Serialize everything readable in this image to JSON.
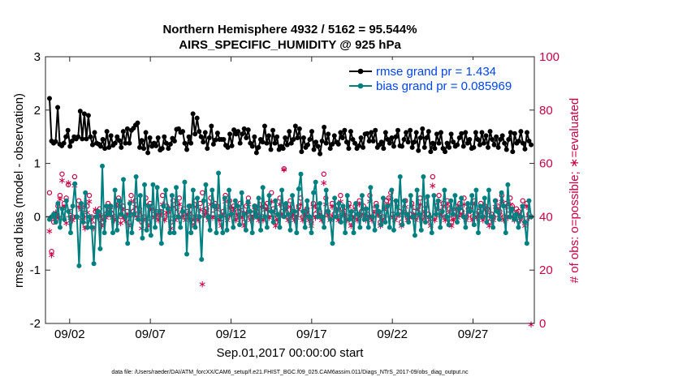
{
  "chart_data": {
    "type": "line",
    "title_line1": "Northern Hemisphere 4932 / 5162 = 95.544%",
    "title_line2": "AIRS_SPECIFIC_HUMIDITY @ 925 hPa",
    "ylabel_left": "rmse and bias (model - observation)",
    "ylabel_right": "# of obs: o=possible; ∗=evaluated",
    "xlabel": "Sep.01,2017 00:00:00 start",
    "footer": "data file: /Users/raeder/DAI/ATM_forcXX/CAM6_setup/f.e21.FHIST_BGC.f09_025.CAM6assim.011/Diags_NTrS_2017-09/obs_diag_output.nc",
    "x_range": [
      0.5,
      30.8
    ],
    "ylim_left": [
      -2,
      3
    ],
    "ylim_right": [
      0,
      100
    ],
    "left_ticks": [
      "-2",
      "-1",
      "0",
      "1",
      "2",
      "3"
    ],
    "right_ticks": [
      "0",
      "20",
      "40",
      "60",
      "80",
      "100"
    ],
    "x_ticks": [
      {
        "day": 2,
        "label": "09/02"
      },
      {
        "day": 7,
        "label": "09/07"
      },
      {
        "day": 12,
        "label": "09/12"
      },
      {
        "day": 17,
        "label": "09/17"
      },
      {
        "day": 22,
        "label": "09/22"
      },
      {
        "day": 27,
        "label": "09/27"
      }
    ],
    "legend": [
      {
        "name": "rmse grand pr = 1.434",
        "color": "#000000"
      },
      {
        "name": "bias grand pr = 0.085969",
        "color": "#008080"
      }
    ],
    "colors": {
      "rmse": "#000000",
      "bias": "#008080",
      "obs": "#cc0044",
      "zero_line": "#999999"
    },
    "series": [
      {
        "name": "rmse",
        "axis": "left",
        "values": [
          2.22,
          1.42,
          1.38,
          1.41,
          2.05,
          1.36,
          1.33,
          1.38,
          1.5,
          1.62,
          1.32,
          1.42,
          1.5,
          1.46,
          1.5,
          1.98,
          1.46,
          1.93,
          1.46,
          1.9,
          1.5,
          1.35,
          1.58,
          1.38,
          1.36,
          1.32,
          1.45,
          1.28,
          1.6,
          1.3,
          1.52,
          1.34,
          1.38,
          1.5,
          1.43,
          1.3,
          1.6,
          1.38,
          1.65,
          1.38,
          1.62,
          1.66,
          1.72,
          1.76,
          1.3,
          1.43,
          1.28,
          1.58,
          1.2,
          1.48,
          1.32,
          1.38,
          1.33,
          1.48,
          1.25,
          1.28,
          1.5,
          1.38,
          1.28,
          1.36,
          1.47,
          1.42,
          1.64,
          1.65,
          1.58,
          1.6,
          1.38,
          1.26,
          1.5,
          1.38,
          1.93,
          1.55,
          1.85,
          1.6,
          1.5,
          1.4,
          1.58,
          1.28,
          1.48,
          1.7,
          1.36,
          1.44,
          1.57,
          1.45,
          1.45,
          1.45,
          1.34,
          1.3,
          1.55,
          1.33,
          1.63,
          1.55,
          1.6,
          1.38,
          1.55,
          1.65,
          1.48,
          1.63,
          1.38,
          1.32,
          1.5,
          1.2,
          1.3,
          1.45,
          1.4,
          1.7,
          1.38,
          1.52,
          1.26,
          1.62,
          1.38,
          1.5,
          1.26,
          1.32,
          1.28,
          1.48,
          1.35,
          1.6,
          1.38,
          1.45,
          1.7,
          1.48,
          1.65,
          1.22,
          1.48,
          1.3,
          1.35,
          1.45,
          1.6,
          1.26,
          1.4,
          1.32,
          1.18,
          1.42,
          1.68,
          1.38,
          1.55,
          1.28,
          1.36,
          1.52,
          1.4,
          1.36,
          1.58,
          1.48,
          1.62,
          1.4,
          1.28,
          1.6,
          1.45,
          1.38,
          1.28,
          1.33,
          1.48,
          1.3,
          1.55,
          1.56,
          1.42,
          1.58,
          1.42,
          1.62,
          1.3,
          1.35,
          1.4,
          1.28,
          1.58,
          1.45,
          1.38,
          1.48,
          1.32,
          1.5,
          1.62,
          1.33,
          1.32,
          1.45,
          1.58,
          1.4,
          1.62,
          1.3,
          1.4,
          1.58,
          1.24,
          1.48,
          1.65,
          1.3,
          1.48,
          1.6,
          1.22,
          1.38,
          1.28,
          1.55,
          1.38,
          1.58,
          1.28,
          1.22,
          1.38,
          1.3,
          1.55,
          1.4,
          1.32,
          1.35,
          1.48,
          1.56,
          1.32,
          1.58,
          1.38,
          1.45,
          1.28,
          1.3,
          1.58,
          1.45,
          1.35,
          1.58,
          1.38,
          1.52,
          1.3,
          1.6,
          1.45,
          1.35,
          1.5,
          1.3,
          1.45,
          1.52,
          1.38,
          1.26,
          1.45,
          1.58,
          1.22,
          1.56,
          1.38,
          1.42,
          1.6,
          1.38,
          1.27,
          1.58,
          1.42,
          1.35
        ]
      },
      {
        "name": "bias",
        "axis": "left",
        "values": [
          -0.05,
          0.0,
          0.05,
          -0.1,
          0.25,
          -0.2,
          0.15,
          -0.05,
          0.3,
          0.1,
          -0.3,
          0.2,
          0.62,
          0.0,
          -0.92,
          0.25,
          -0.1,
          0.45,
          -0.2,
          0.0,
          -0.2,
          -0.88,
          0.0,
          0.1,
          -0.6,
          0.95,
          -0.3,
          0.2,
          0.05,
          0.2,
          -0.3,
          0.5,
          -0.25,
          0.3,
          0.05,
          0.7,
          0.0,
          -0.5,
          0.25,
          -0.3,
          0.05,
          0.75,
          -0.05,
          0.4,
          -0.4,
          0.6,
          -0.25,
          0.2,
          -0.35,
          0.6,
          -0.2,
          0.55,
          0.1,
          -0.5,
          0.2,
          0.5,
          0.15,
          -0.3,
          0.4,
          -0.3,
          0.55,
          0.0,
          -0.2,
          0.1,
          0.65,
          -0.7,
          0.2,
          -0.3,
          0.5,
          -0.2,
          0.35,
          0.0,
          -0.8,
          0.3,
          0.6,
          0.0,
          -0.25,
          0.5,
          0.2,
          -0.3,
          0.82,
          0.0,
          -0.3,
          0.35,
          -0.25,
          0.5,
          0.05,
          -0.2,
          0.3,
          0.2,
          -0.15,
          0.45,
          0.05,
          -0.25,
          0.28,
          0.1,
          -0.3,
          0.2,
          0.0,
          0.35,
          -0.25,
          0.55,
          0.0,
          -0.2,
          0.4,
          0.1,
          -0.1,
          0.3,
          0.05,
          -0.2,
          0.5,
          0.0,
          0.25,
          0.05,
          -0.25,
          0.4,
          0.1,
          -0.3,
          0.52,
          0.8,
          0.1,
          -0.2,
          0.3,
          0.0,
          -0.3,
          0.45,
          0.65,
          0.0,
          0.25,
          0.0,
          -0.2,
          0.5,
          0.1,
          -0.05,
          -0.5,
          0.35,
          0.0,
          0.25,
          -0.1,
          0.2,
          -0.3,
          0.4,
          -0.05,
          0.1,
          -0.3,
          0.25,
          0.05,
          -0.2,
          0.4,
          -0.05,
          0.15,
          -0.2,
          0.55,
          0.0,
          -0.25,
          0.2,
          0.1,
          -0.15,
          0.35,
          -0.1,
          0.2,
          -0.2,
          0.5,
          -0.25,
          0.3,
          0.05,
          0.75,
          -0.15,
          0.3,
          0.05,
          -0.1,
          0.4,
          0.0,
          -0.35,
          0.5,
          0.05,
          -0.25,
          0.75,
          -0.1,
          0.38,
          0.0,
          -0.3,
          0.4,
          0.05,
          0.3,
          -0.2,
          0.1,
          0.5,
          0.0,
          -0.15,
          0.3,
          0.05,
          0.4,
          -0.1,
          0.15,
          0.35,
          0.0,
          -0.2,
          0.25,
          0.1,
          0.4,
          -0.15,
          0.5,
          -0.3,
          0.2,
          0.0,
          0.35,
          -0.1,
          0.5,
          0.0,
          -0.2,
          0.3,
          0.1,
          -0.05,
          0.45,
          0.2,
          -0.3,
          0.6,
          0.0,
          0.15,
          -0.05,
          0.05,
          -0.2,
          0.0,
          0.2,
          -0.1,
          -0.5,
          0.3,
          0.0
        ]
      },
      {
        "name": "obs_possible",
        "axis": "right",
        "values": [
          49,
          27,
          38,
          41,
          44,
          48,
          56,
          45,
          47,
          52,
          42,
          40,
          55,
          40,
          46,
          44,
          40,
          37,
          44,
          48,
          40,
          37,
          42,
          42,
          43,
          38,
          40,
          41,
          45,
          44,
          41,
          40,
          46,
          47,
          40,
          44,
          40,
          42,
          38,
          48,
          42,
          46,
          41,
          43,
          38,
          40,
          47,
          38,
          45,
          44,
          41,
          42,
          40,
          42,
          48,
          40,
          44,
          43,
          38,
          46,
          40,
          45,
          47,
          41,
          43,
          40,
          42,
          44,
          40,
          38,
          46,
          40,
          45,
          49,
          42,
          43,
          40,
          47,
          41,
          45,
          44,
          40,
          38,
          42,
          48,
          40,
          46,
          43,
          44,
          40,
          42,
          45,
          41,
          38,
          44,
          47,
          40,
          41,
          44,
          42,
          40,
          46,
          40,
          44,
          45,
          41,
          49,
          43,
          38,
          40,
          47,
          42,
          58,
          44,
          40,
          46,
          42,
          40,
          41,
          44,
          47,
          40,
          42,
          43,
          40,
          38,
          45,
          41,
          44,
          42,
          40,
          56,
          47,
          42,
          40,
          45,
          41,
          44,
          40,
          48,
          43,
          42,
          40,
          45,
          38,
          41,
          44,
          40,
          46,
          42,
          44,
          40,
          41,
          48,
          40,
          43,
          45,
          42,
          38,
          40,
          44,
          46,
          47,
          49,
          41,
          40,
          45,
          42,
          38,
          43,
          46,
          40,
          41,
          45,
          42,
          40,
          44,
          47,
          40,
          43,
          46,
          41,
          38,
          55,
          40,
          44,
          48,
          42,
          45,
          40,
          46,
          43,
          38,
          40,
          44,
          41,
          45,
          42,
          47,
          40,
          43,
          44,
          40,
          46,
          41,
          42,
          45,
          40,
          44,
          43,
          38,
          41,
          40,
          46,
          44,
          42,
          48,
          40,
          45,
          41,
          47,
          44,
          40,
          43,
          42,
          40,
          46,
          38,
          45,
          41,
          40
        ]
      },
      {
        "name": "obs_evaluated",
        "axis": "right",
        "values": [
          35,
          26,
          40,
          42,
          40,
          47,
          54,
          44,
          38,
          53,
          40,
          39,
          52,
          40,
          44,
          43,
          39,
          36,
          42,
          46,
          39,
          36,
          43,
          40,
          41,
          37,
          39,
          40,
          42,
          43,
          40,
          39,
          44,
          45,
          38,
          43,
          39,
          41,
          37,
          46,
          41,
          44,
          40,
          42,
          36,
          39,
          45,
          37,
          43,
          43,
          40,
          41,
          39,
          41,
          45,
          39,
          42,
          42,
          36,
          44,
          39,
          43,
          45,
          40,
          42,
          39,
          41,
          42,
          39,
          37,
          44,
          39,
          43,
          15,
          41,
          42,
          39,
          45,
          40,
          44,
          43,
          39,
          37,
          41,
          46,
          39,
          44,
          42,
          43,
          39,
          41,
          43,
          40,
          37,
          42,
          45,
          39,
          40,
          43,
          41,
          39,
          44,
          39,
          43,
          43,
          40,
          46,
          42,
          37,
          39,
          45,
          41,
          58,
          43,
          39,
          44,
          41,
          39,
          40,
          43,
          45,
          39,
          41,
          42,
          39,
          37,
          44,
          40,
          43,
          41,
          39,
          53,
          45,
          41,
          39,
          44,
          40,
          43,
          39,
          46,
          42,
          41,
          39,
          44,
          37,
          40,
          43,
          39,
          45,
          41,
          43,
          39,
          40,
          46,
          39,
          42,
          44,
          41,
          37,
          39,
          43,
          44,
          45,
          47,
          40,
          39,
          44,
          41,
          37,
          42,
          44,
          39,
          40,
          44,
          41,
          39,
          43,
          45,
          39,
          42,
          44,
          40,
          37,
          52,
          39,
          43,
          46,
          41,
          44,
          39,
          45,
          42,
          37,
          39,
          43,
          40,
          44,
          41,
          45,
          39,
          42,
          43,
          39,
          45,
          40,
          41,
          44,
          39,
          43,
          42,
          37,
          40,
          39,
          44,
          43,
          41,
          46,
          39,
          44,
          40,
          45,
          43,
          39,
          42,
          41,
          39,
          44,
          37,
          44,
          40,
          0
        ]
      }
    ]
  }
}
